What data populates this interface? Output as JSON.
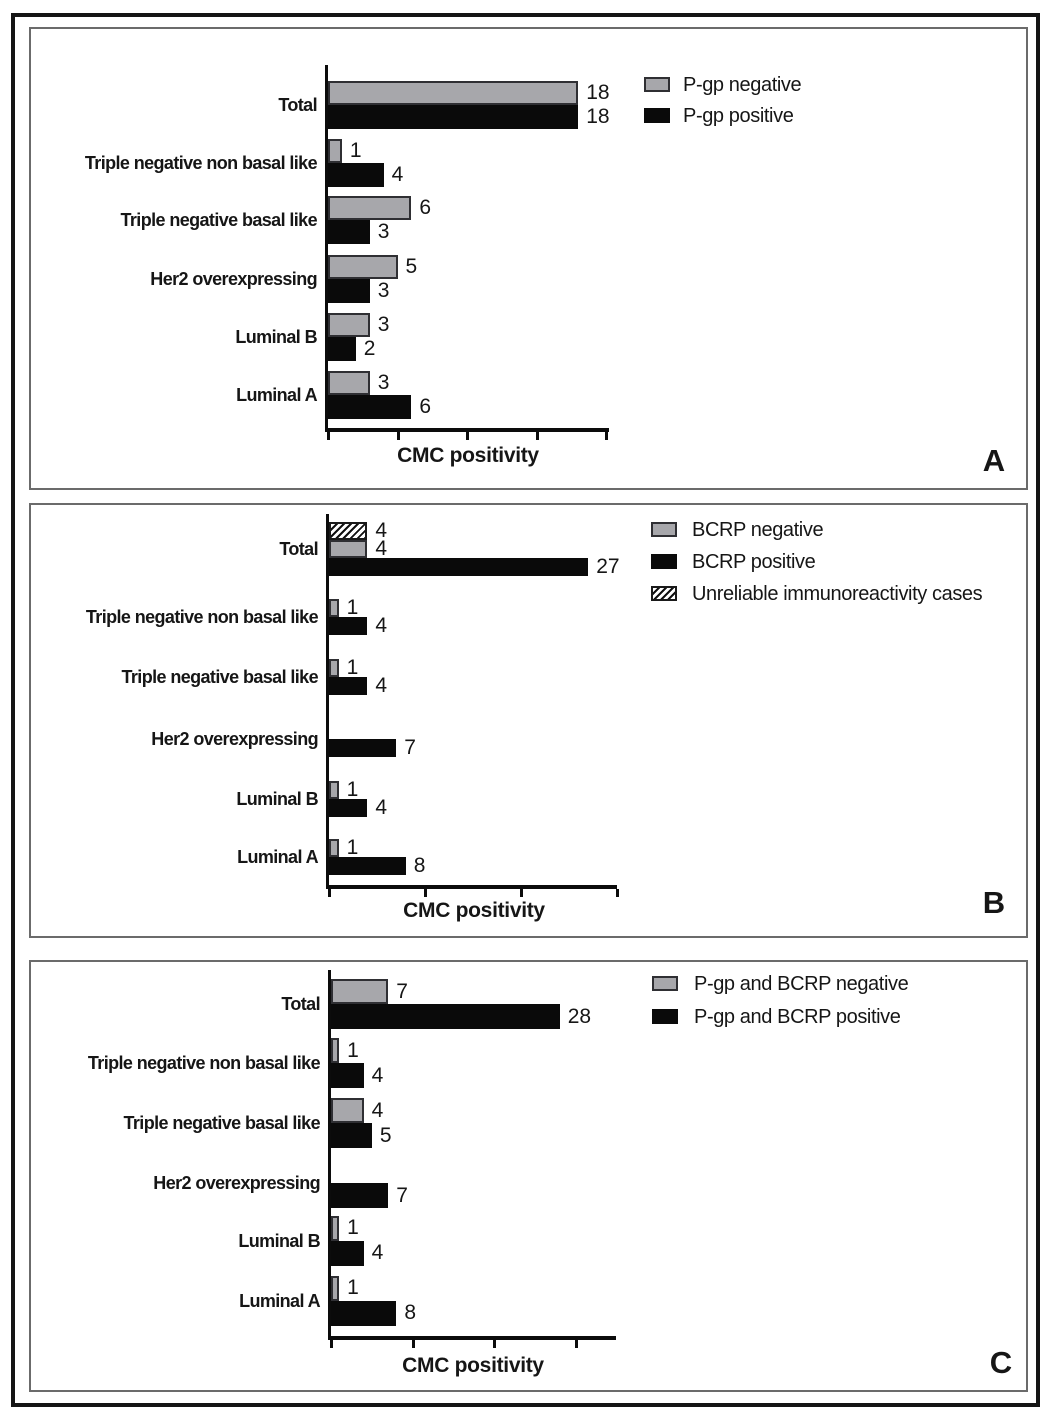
{
  "figure": {
    "panel_labels": [
      "A",
      "B",
      "C"
    ]
  },
  "chart_data": [
    {
      "type": "bar",
      "orientation": "horizontal",
      "panel_label": "A",
      "title": "",
      "xlabel": "CMC positivity",
      "ylabel": "",
      "categories": [
        "Total",
        "Triple negative non basal like",
        "Triple negative basal like",
        "Her2 overexpressing",
        "Luminal B",
        "Luminal A"
      ],
      "series": [
        {
          "name": "P-gp negative",
          "values": [
            18,
            1,
            6,
            5,
            3,
            3
          ],
          "color": "#a7a7ab",
          "pattern": "solid"
        },
        {
          "name": "P-gp positive",
          "values": [
            18,
            4,
            3,
            3,
            2,
            6
          ],
          "color": "#0a0a0a",
          "pattern": "solid"
        }
      ],
      "xlim": [
        0,
        20
      ],
      "xticks": [
        0,
        5,
        10,
        15,
        20
      ],
      "grid": false,
      "legend_position": "top-right",
      "value_labels": true
    },
    {
      "type": "bar",
      "orientation": "horizontal",
      "panel_label": "B",
      "title": "",
      "xlabel": "CMC positivity",
      "ylabel": "",
      "categories": [
        "Total",
        "Triple negative non basal like",
        "Triple negative basal like",
        "Her2 overexpressing",
        "Luminal B",
        "Luminal A"
      ],
      "series": [
        {
          "name": "BCRP negative",
          "values": [
            4,
            1,
            1,
            null,
            1,
            1
          ],
          "color": "#a7a7ab",
          "pattern": "solid"
        },
        {
          "name": "BCRP positive",
          "values": [
            27,
            4,
            4,
            7,
            4,
            8
          ],
          "color": "#0a0a0a",
          "pattern": "solid"
        },
        {
          "name": "Unreliable immunoreactivity cases",
          "values": [
            4,
            null,
            null,
            null,
            null,
            null
          ],
          "color": "#ffffff",
          "pattern": "hatch"
        }
      ],
      "xlim": [
        0,
        30
      ],
      "xticks": [
        0,
        10,
        20,
        30
      ],
      "grid": false,
      "legend_position": "top-right",
      "value_labels": true
    },
    {
      "type": "bar",
      "orientation": "horizontal",
      "panel_label": "C",
      "title": "",
      "xlabel": "CMC positivity",
      "ylabel": "",
      "categories": [
        "Total",
        "Triple negative non basal like",
        "Triple negative basal like",
        "Her2 overexpressing",
        "Luminal B",
        "Luminal A"
      ],
      "series": [
        {
          "name": "P-gp and BCRP negative",
          "values": [
            7,
            1,
            4,
            null,
            1,
            1
          ],
          "color": "#a7a7ab",
          "pattern": "solid"
        },
        {
          "name": "P-gp and BCRP positive",
          "values": [
            28,
            4,
            5,
            7,
            4,
            8
          ],
          "color": "#0a0a0a",
          "pattern": "solid"
        }
      ],
      "xlim": [
        0,
        30
      ],
      "xticks": [
        0,
        10,
        20,
        30
      ],
      "grid": false,
      "legend_position": "top-right",
      "value_labels": true
    }
  ]
}
